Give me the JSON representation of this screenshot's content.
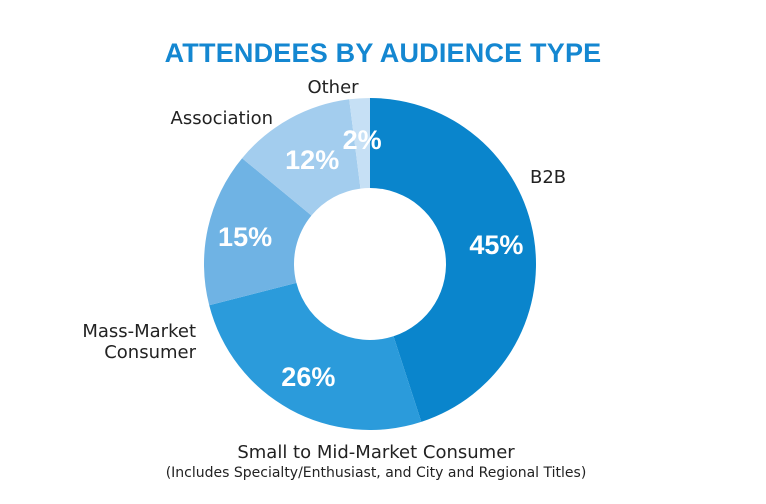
{
  "chart_data": {
    "type": "pie",
    "style": "donut",
    "title": "ATTENDEES BY AUDIENCE TYPE",
    "categories": [
      "B2B",
      "Small to Mid-Market Consumer",
      "Mass-Market Consumer",
      "Association",
      "Other"
    ],
    "values": [
      45,
      26,
      15,
      12,
      2
    ],
    "value_labels": [
      "45%",
      "26%",
      "15%",
      "12%",
      "2%"
    ],
    "category_label_lines": [
      [
        "B2B"
      ],
      [
        "Small to Mid-Market Consumer"
      ],
      [
        "Mass-Market",
        "Consumer"
      ],
      [
        "Association"
      ],
      [
        "Other"
      ]
    ],
    "note": "(Includes Specialty/Enthusiast, and City and Regional Titles)",
    "colors": [
      "#0a85cc",
      "#2b9bdb",
      "#6fb3e4",
      "#a3cdee",
      "#c6e0f5"
    ],
    "title_color": "#1487d1",
    "start": "12 o'clock",
    "direction": "clockwise"
  }
}
